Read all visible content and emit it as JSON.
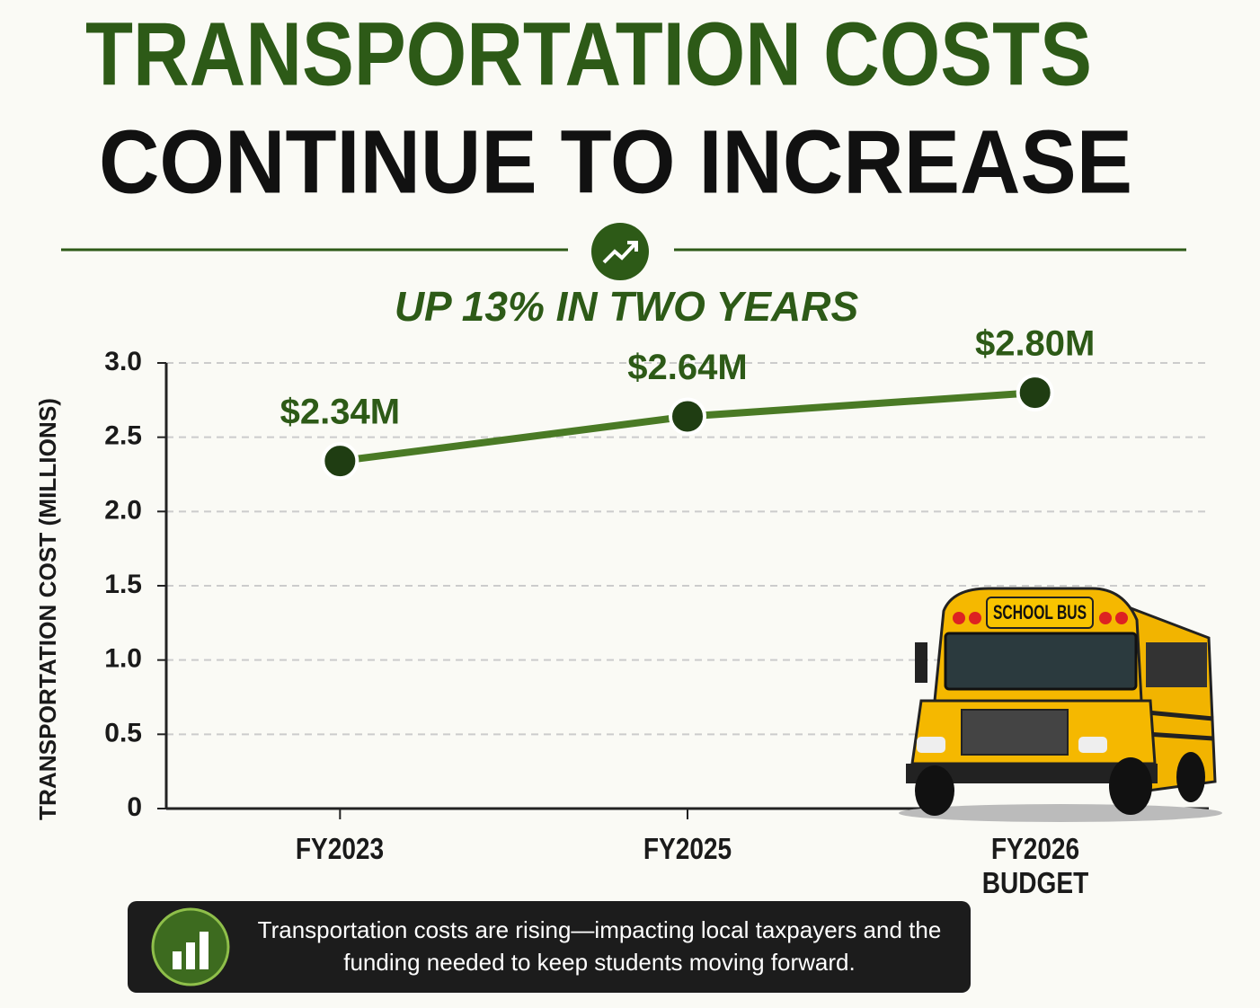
{
  "chart_data": {
    "type": "line",
    "title_lines": [
      "TRANSPORTATION COSTS",
      "CONTINUE TO INCREASE"
    ],
    "subtitle": "UP 13% IN TWO YEARS",
    "y_label": "TRANSPORTATION COST (MILLIONS)",
    "categories": [
      "FY2023",
      "FY2025",
      "FY2026 BUDGET"
    ],
    "values": [
      2.34,
      2.64,
      2.8
    ],
    "value_labels": [
      "$2.34M",
      "$2.64M",
      "$2.80M"
    ],
    "color": "#4a7a25",
    "ylim": [
      0,
      3
    ],
    "yticks": [
      0,
      0.5,
      {
        "value": 1,
        "label": "1.0"
      },
      1.5,
      {
        "value": 2,
        "label": "2.0"
      },
      2.5,
      {
        "value": 3,
        "label": "3.0"
      }
    ],
    "grid": true,
    "bus_sign": "SCHOOL BUS",
    "note": "Transportation costs are rising—impacting local taxpayers and the funding needed to keep students moving forward."
  }
}
